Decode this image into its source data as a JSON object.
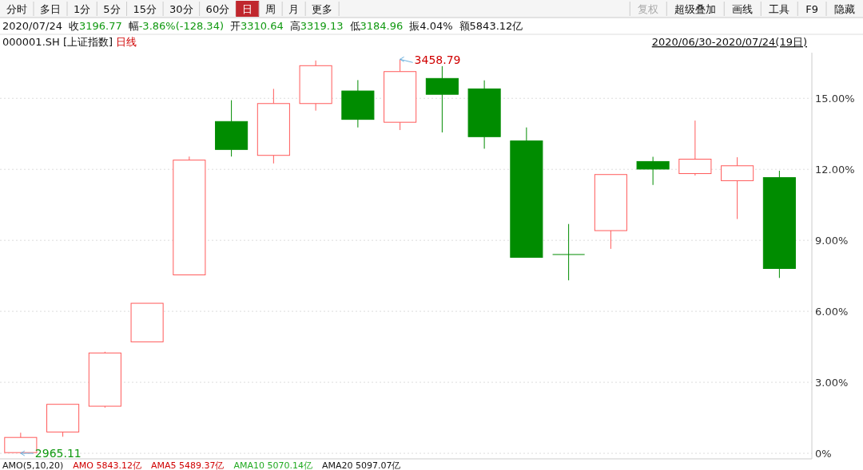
{
  "chart_data": {
    "type": "candlestick",
    "title": "000001.SH [上证指数]",
    "subtitle": "日线",
    "categories": [
      null,
      null,
      null,
      null,
      null,
      null,
      null,
      null,
      null,
      null,
      null,
      null,
      null,
      null,
      null,
      null,
      null,
      null,
      null
    ],
    "ohlc": [
      [
        0.03,
        0.87,
        0,
        0.67
      ],
      [
        0.9,
        2.07,
        0.7,
        2.07
      ],
      [
        1.99,
        4.29,
        1.93,
        4.24
      ],
      [
        4.71,
        6.34,
        4.71,
        6.34
      ],
      [
        7.54,
        12.54,
        7.54,
        12.39
      ],
      [
        14.02,
        14.92,
        12.54,
        12.84
      ],
      [
        12.59,
        15.4,
        12.25,
        14.78
      ],
      [
        14.78,
        16.6,
        14.48,
        16.38
      ],
      [
        15.31,
        15.77,
        13.77,
        14.11
      ],
      [
        13.99,
        16.65,
        13.66,
        16.13
      ],
      [
        15.84,
        16.36,
        13.56,
        15.17
      ],
      [
        15.4,
        15.76,
        12.87,
        13.38
      ],
      [
        13.2,
        13.77,
        8.28,
        8.28
      ],
      [
        8.4,
        9.69,
        7.31,
        8.4
      ],
      [
        9.41,
        11.78,
        8.64,
        11.78
      ],
      [
        12.33,
        12.53,
        11.34,
        12.01
      ],
      [
        11.82,
        14.06,
        11.74,
        12.43
      ],
      [
        11.52,
        12.51,
        9.9,
        12.15
      ],
      [
        11.65,
        11.94,
        7.41,
        7.81
      ]
    ],
    "colors": [
      "#ff5a5a",
      "#ff5a5a",
      "#ff5a5a",
      "#ff5a5a",
      "#ff5a5a",
      "#008c00",
      "#ff5a5a",
      "#ff5a5a",
      "#008c00",
      "#ff5a5a",
      "#008c00",
      "#008c00",
      "#008c00",
      "#008c00",
      "#ff5a5a",
      "#008c00",
      "#ff5a5a",
      "#ff5a5a",
      "#008c00"
    ],
    "ylim": [
      -0.2,
      16.93
    ],
    "yticks": [
      {
        "value": 0,
        "label": "0%"
      },
      {
        "value": 3,
        "label": "3.00%"
      },
      {
        "value": 6,
        "label": "6.00%"
      },
      {
        "value": 9,
        "label": "9.00%"
      },
      {
        "value": 12,
        "label": "12.00%"
      },
      {
        "value": 15,
        "label": "15.00%"
      }
    ],
    "grid": "y",
    "tick_labels": "y",
    "annotations": [
      "分时",
      "多日",
      "1分",
      "5分",
      "15分",
      "30分",
      "60分",
      "日",
      "周",
      "月",
      "更多",
      "复权",
      "超级叠加",
      "画线",
      "工具",
      "F9",
      "隐藏",
      "2020/07/24",
      "收3196.77",
      "幅-3.86%(-128.34)",
      "开3310.64",
      "高3319.13",
      "低3184.96",
      "振4.04%",
      "额5843.12亿",
      "2020/06/30-2020/07/24(19日)",
      "AMO(5,10,20)",
      "AMO 5843.12亿",
      "AMA5 5489.37亿",
      "AMA10 5070.14亿",
      "AMA20 5097.07亿",
      "2965.11",
      "3458.79"
    ]
  }
}
